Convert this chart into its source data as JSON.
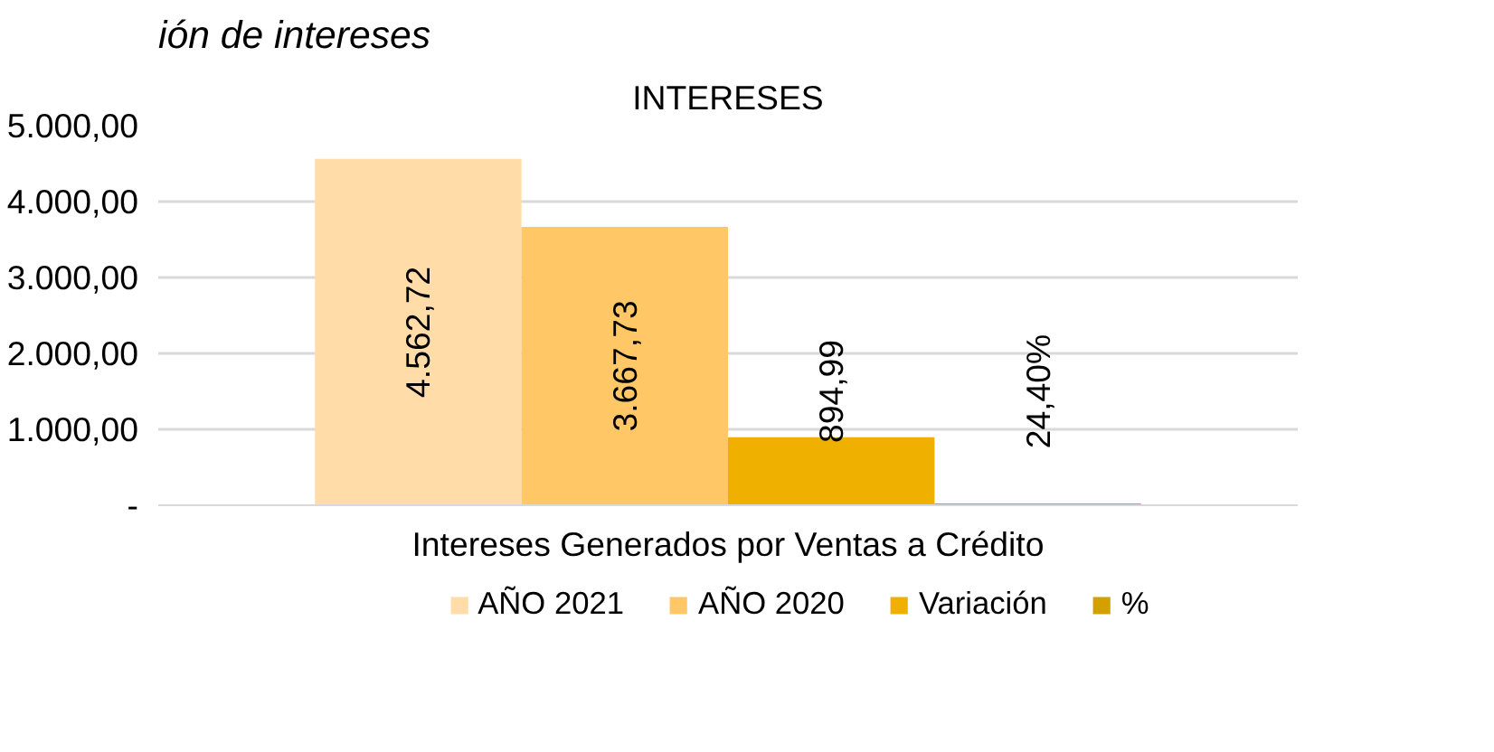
{
  "chart_data": {
    "type": "bar",
    "title": "INTERESES",
    "annotations": [
      "ión de intereses"
    ],
    "categories": [
      "Intereses Generados por Ventas a Crédito"
    ],
    "series": [
      {
        "name": "AÑO 2021",
        "color": "#ffdca8",
        "values": [
          4562.72
        ],
        "value_labels": [
          "4.562,72"
        ]
      },
      {
        "name": "AÑO 2020",
        "color": "#ffc766",
        "values": [
          3667.73
        ],
        "value_labels": [
          "3.667,73"
        ]
      },
      {
        "name": "Variación",
        "color": "#f0b000",
        "values": [
          894.99
        ],
        "value_labels": [
          "894,99"
        ]
      },
      {
        "name": "%",
        "color": "#d4a000",
        "values": [
          24.4
        ],
        "value_labels": [
          "24,40%"
        ]
      }
    ],
    "ylim": [
      0,
      5000
    ],
    "yticks": [
      {
        "value": 0,
        "label": "-"
      },
      {
        "value": 1000,
        "label": "1.000,00"
      },
      {
        "value": 2000,
        "label": "2.000,00"
      },
      {
        "value": 3000,
        "label": "3.000,00"
      },
      {
        "value": 4000,
        "label": "4.000,00"
      },
      {
        "value": 5000,
        "label": "5.000,00"
      }
    ],
    "grid": "y",
    "legend": "bottom"
  }
}
